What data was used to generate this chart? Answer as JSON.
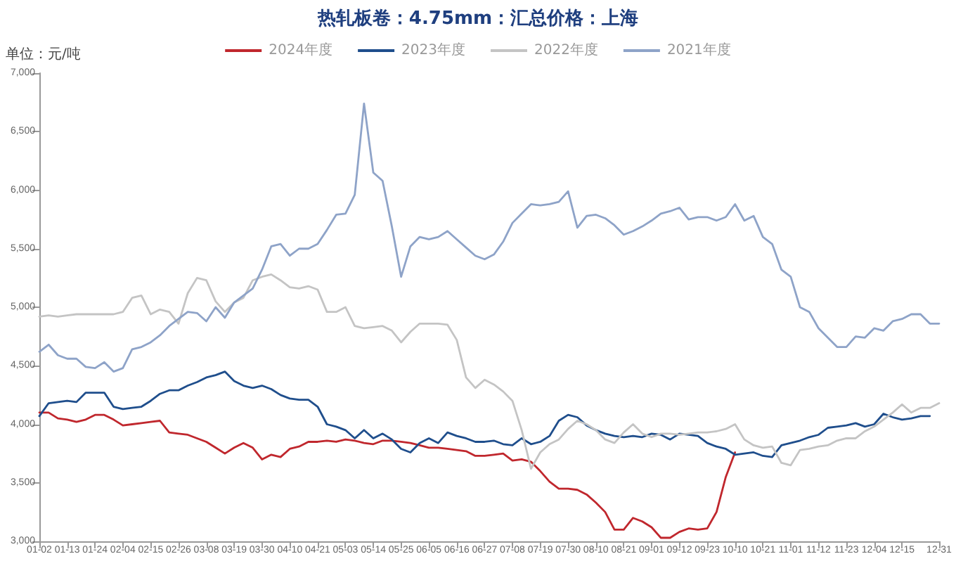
{
  "chart_data": {
    "type": "line",
    "title": "热轧板卷：4.75mm：汇总价格：上海",
    "ylabel": "单位：元/吨",
    "categories": [
      "01-02",
      null,
      null,
      "01-13",
      null,
      null,
      "01-24",
      null,
      null,
      "02-04",
      null,
      null,
      "02-15",
      null,
      null,
      "02-26",
      null,
      null,
      "03-08",
      null,
      null,
      "03-19",
      null,
      null,
      "03-30",
      null,
      null,
      "04-10",
      null,
      null,
      "04-21",
      null,
      null,
      "05-03",
      null,
      null,
      "05-14",
      null,
      null,
      "05-25",
      null,
      null,
      "06-05",
      null,
      null,
      "06-16",
      null,
      null,
      "06-27",
      null,
      null,
      "07-08",
      null,
      null,
      "07-19",
      null,
      null,
      "07-30",
      null,
      null,
      "08-10",
      null,
      null,
      "08-21",
      null,
      null,
      "09-01",
      null,
      null,
      "09-12",
      null,
      null,
      "09-23",
      null,
      null,
      "10-10",
      null,
      null,
      "10-21",
      null,
      null,
      "11-01",
      null,
      null,
      "11-12",
      null,
      null,
      "11-23",
      null,
      null,
      "12-04",
      null,
      null,
      "12-15",
      null,
      null,
      null,
      "12-31"
    ],
    "series": [
      {
        "name": "2024年度",
        "color": "#c0272d",
        "values": [
          4100,
          4100,
          4050,
          4040,
          4020,
          4040,
          4080,
          4080,
          4040,
          3990,
          4000,
          4010,
          4020,
          4030,
          3930,
          3920,
          3910,
          3880,
          3850,
          3800,
          3750,
          3800,
          3840,
          3800,
          3700,
          3740,
          3720,
          3790,
          3810,
          3850,
          3850,
          3860,
          3850,
          3870,
          3860,
          3840,
          3830,
          3860,
          3860,
          3850,
          3840,
          3820,
          3800,
          3800,
          3790,
          3780,
          3770,
          3730,
          3730,
          3740,
          3750,
          3690,
          3700,
          3680,
          3600,
          3510,
          3450,
          3450,
          3440,
          3400,
          3330,
          3250,
          3100,
          3100,
          3200,
          3170,
          3120,
          3030,
          3030,
          3080,
          3110,
          3100,
          3110,
          3250,
          3550,
          3760,
          null,
          null,
          null,
          null,
          null,
          null,
          null,
          null,
          null,
          null,
          null,
          null,
          null,
          null,
          null,
          null,
          null,
          null,
          null,
          null,
          null,
          null
        ]
      },
      {
        "name": "2023年度",
        "color": "#1f4e8c",
        "values": [
          4070,
          4180,
          4190,
          4200,
          4190,
          4270,
          4270,
          4270,
          4150,
          4130,
          4140,
          4150,
          4200,
          4260,
          4290,
          4290,
          4330,
          4360,
          4400,
          4420,
          4450,
          4370,
          4330,
          4310,
          4330,
          4300,
          4250,
          4220,
          4210,
          4210,
          4150,
          4000,
          3980,
          3950,
          3880,
          3950,
          3880,
          3920,
          3870,
          3790,
          3760,
          3840,
          3880,
          3840,
          3930,
          3900,
          3880,
          3850,
          3850,
          3860,
          3830,
          3820,
          3880,
          3830,
          3850,
          3900,
          4030,
          4080,
          4060,
          3990,
          3950,
          3920,
          3900,
          3890,
          3900,
          3890,
          3920,
          3910,
          3870,
          3920,
          3910,
          3900,
          3840,
          3810,
          3790,
          3740,
          3750,
          3760,
          3730,
          3720,
          3820,
          3840,
          3860,
          3890,
          3910,
          3970,
          3980,
          3990,
          4010,
          3980,
          4000,
          4090,
          4060,
          4040,
          4050,
          4070,
          4070,
          null
        ]
      },
      {
        "name": "2022年度",
        "color": "#c4c4c4",
        "values": [
          4920,
          4930,
          4920,
          4930,
          4940,
          4940,
          4940,
          4940,
          4940,
          4960,
          5080,
          5100,
          4940,
          4980,
          4960,
          4860,
          5120,
          5250,
          5230,
          5050,
          4960,
          5040,
          5080,
          5230,
          5260,
          5280,
          5230,
          5170,
          5160,
          5180,
          5150,
          4960,
          4960,
          5000,
          4840,
          4820,
          4830,
          4840,
          4800,
          4700,
          4790,
          4860,
          4860,
          4860,
          4850,
          4720,
          4400,
          4310,
          4380,
          4340,
          4280,
          4200,
          3950,
          3620,
          3760,
          3830,
          3870,
          3960,
          4030,
          4000,
          3950,
          3870,
          3840,
          3930,
          4000,
          3920,
          3890,
          3920,
          3920,
          3910,
          3920,
          3930,
          3930,
          3940,
          3960,
          4000,
          3870,
          3820,
          3800,
          3810,
          3670,
          3650,
          3780,
          3790,
          3810,
          3820,
          3860,
          3880,
          3880,
          3940,
          3980,
          4040,
          4100,
          4170,
          4100,
          4140,
          4140,
          4180
        ]
      },
      {
        "name": "2021年度",
        "color": "#8ea3c8",
        "values": [
          4620,
          4680,
          4590,
          4560,
          4560,
          4490,
          4480,
          4530,
          4450,
          4480,
          4640,
          4660,
          4700,
          4760,
          4840,
          4900,
          4960,
          4950,
          4880,
          5000,
          4910,
          5040,
          5100,
          5160,
          5320,
          5520,
          5540,
          5440,
          5500,
          5500,
          5540,
          5660,
          5790,
          5800,
          5960,
          6740,
          6150,
          6080,
          5690,
          5260,
          5520,
          5600,
          5580,
          5600,
          5650,
          5580,
          5510,
          5440,
          5410,
          5450,
          5560,
          5720,
          5800,
          5880,
          5870,
          5880,
          5900,
          5990,
          5680,
          5780,
          5790,
          5760,
          5700,
          5620,
          5650,
          5690,
          5740,
          5800,
          5820,
          5850,
          5750,
          5770,
          5770,
          5740,
          5770,
          5880,
          5740,
          5780,
          5600,
          5540,
          5320,
          5260,
          5000,
          4960,
          4820,
          4740,
          4660,
          4660,
          4750,
          4740,
          4820,
          4800,
          4880,
          4900,
          4940,
          4940,
          4860,
          4860
        ]
      }
    ],
    "ylim": [
      3000,
      7000
    ],
    "yticks": [
      {
        "value": 3000,
        "label": "3,000"
      },
      {
        "value": 3500,
        "label": "3,500"
      },
      {
        "value": 4000,
        "label": "4,000"
      },
      {
        "value": 4500,
        "label": "4,500"
      },
      {
        "value": 5000,
        "label": "5,000"
      },
      {
        "value": 5500,
        "label": "5,500"
      },
      {
        "value": 6000,
        "label": "6,000"
      },
      {
        "value": 6500,
        "label": "6,500"
      },
      {
        "value": 7000,
        "label": "7,000"
      }
    ],
    "grid": false,
    "legend": "top",
    "marker": "none"
  }
}
